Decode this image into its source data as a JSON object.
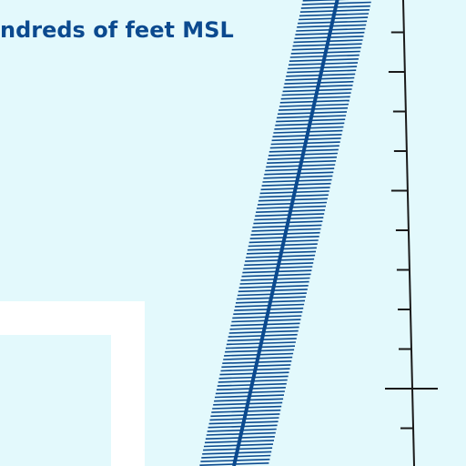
{
  "map": {
    "label": "ndreds of feet MSL",
    "colors": {
      "background": "#e3f9fc",
      "airway": "#0b4a8f",
      "scale_line": "#1a1a1a",
      "white_area": "#ffffff"
    }
  }
}
